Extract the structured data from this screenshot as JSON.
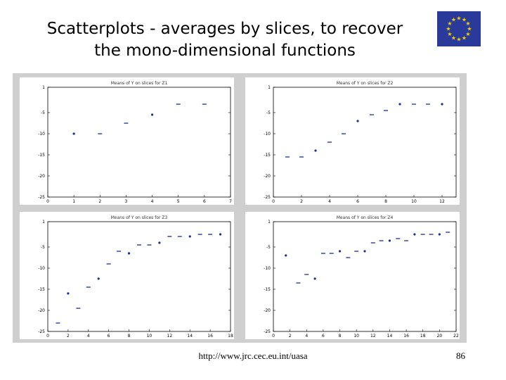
{
  "slide": {
    "title_line1": "Scatterplots - averages by slices, to recover",
    "title_line2": "the mono-dimensional functions",
    "footer_url": "http://www.jrc.cec.eu.int/uasa",
    "page_number": "86"
  },
  "colors": {
    "background": "#ffffff",
    "panel": "#cfcfcf",
    "plot_area": "#ffffff",
    "marker": "#1f2f8f",
    "flag_blue": "#2a3a9a",
    "flag_stars": "#f5d000"
  },
  "chart_data": [
    {
      "type": "scatter",
      "title": "Means of Y on slices for Z1",
      "xlim": [
        0,
        7
      ],
      "ylim": [
        -25,
        1
      ],
      "xticks": [
        "0",
        "1",
        "2",
        "3",
        "4",
        "5",
        "6",
        "7"
      ],
      "yticks": [
        "1",
        "-5",
        "-10",
        "-15",
        "-20",
        "-25"
      ],
      "x": [
        1,
        2,
        3,
        4,
        5,
        6
      ],
      "y": [
        -10,
        -10,
        -7.5,
        -5.5,
        -3,
        -3
      ]
    },
    {
      "type": "scatter",
      "title": "Means of Y on slices for Z2",
      "xlim": [
        0,
        13
      ],
      "ylim": [
        -25,
        1
      ],
      "xticks": [
        "0",
        "2",
        "4",
        "6",
        "8",
        "10",
        "12"
      ],
      "yticks": [
        "1",
        "-5",
        "-10",
        "-15",
        "-20",
        "-25"
      ],
      "x": [
        1,
        2,
        3,
        4,
        5,
        6,
        7,
        8,
        9,
        10,
        11,
        12
      ],
      "y": [
        -15.5,
        -15.5,
        -14,
        -12,
        -10,
        -7,
        -5.5,
        -4.5,
        -3,
        -3,
        -3,
        -3
      ]
    },
    {
      "type": "scatter",
      "title": "Means of Y on slices for Z3",
      "xlim": [
        0,
        18
      ],
      "ylim": [
        -25,
        1
      ],
      "xticks": [
        "0",
        "2",
        "4",
        "6",
        "8",
        "10",
        "12",
        "14",
        "16",
        "18"
      ],
      "yticks": [
        "1",
        "-5",
        "-10",
        "-15",
        "-20",
        "-25"
      ],
      "x": [
        1,
        2,
        3,
        4,
        5,
        6,
        7,
        8,
        9,
        10,
        11,
        12,
        13,
        14,
        15,
        16,
        17
      ],
      "y": [
        -23,
        -16,
        -19.5,
        -14.5,
        -12.5,
        -9,
        -6,
        -6.5,
        -4.5,
        -4.5,
        -4,
        -2.5,
        -2.5,
        -2.5,
        -2,
        -2,
        -2
      ]
    },
    {
      "type": "scatter",
      "title": "Means of Y on slices for Z4",
      "xlim": [
        0,
        22
      ],
      "ylim": [
        -25,
        1
      ],
      "xticks": [
        "0",
        "2",
        "4",
        "6",
        "8",
        "10",
        "12",
        "14",
        "16",
        "18",
        "20",
        "22"
      ],
      "yticks": [
        "1",
        "-5",
        "-10",
        "-15",
        "-20",
        "-25"
      ],
      "x": [
        1.5,
        3,
        4,
        5,
        6,
        7,
        8,
        9,
        10,
        11,
        12,
        13,
        14,
        15,
        16,
        17,
        18,
        19,
        20,
        21
      ],
      "y": [
        -7,
        -13.5,
        -11.5,
        -12.5,
        -6.5,
        -6.5,
        -6,
        -7.5,
        -6,
        -6,
        -4,
        -3.5,
        -3.5,
        -3,
        -3.5,
        -2,
        -2,
        -2,
        -2,
        -1.5
      ]
    }
  ]
}
